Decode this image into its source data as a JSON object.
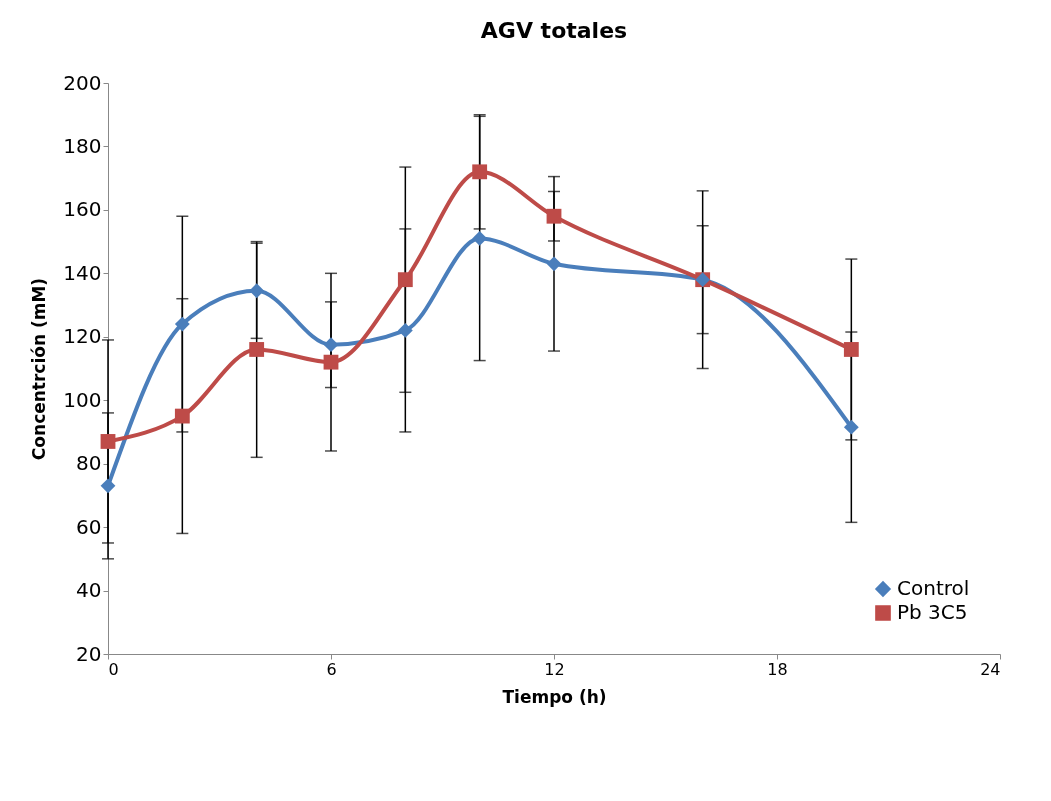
{
  "chart_data": {
    "type": "line",
    "title": "AGV totales",
    "xlabel": "Tiempo (h)",
    "ylabel": "Concentrción (mM)",
    "x": [
      0,
      2,
      4,
      6,
      8,
      10,
      12,
      16,
      20
    ],
    "series": [
      {
        "name": "Control",
        "color": "#4a7ebb",
        "marker": "diamond",
        "values": [
          73,
          124,
          134.5,
          117.5,
          122,
          151,
          143,
          138,
          91.5
        ],
        "errors": [
          23,
          34,
          15,
          13.5,
          32,
          38.5,
          27.5,
          28,
          30
        ]
      },
      {
        "name": "Pb 3C5",
        "color": "#be4b48",
        "marker": "square",
        "values": [
          87,
          95,
          116,
          112,
          138,
          172,
          158,
          138,
          116
        ],
        "errors": [
          32,
          37,
          34,
          28,
          35.5,
          18,
          7.8,
          17,
          28.5
        ]
      }
    ],
    "xlim": [
      0,
      24
    ],
    "xticks": [
      0,
      6,
      12,
      18,
      24
    ],
    "ylim": [
      20,
      200
    ],
    "yticks": [
      20,
      40,
      60,
      80,
      100,
      120,
      140,
      160,
      180,
      200
    ],
    "grid": false,
    "legend": "bottom right"
  }
}
